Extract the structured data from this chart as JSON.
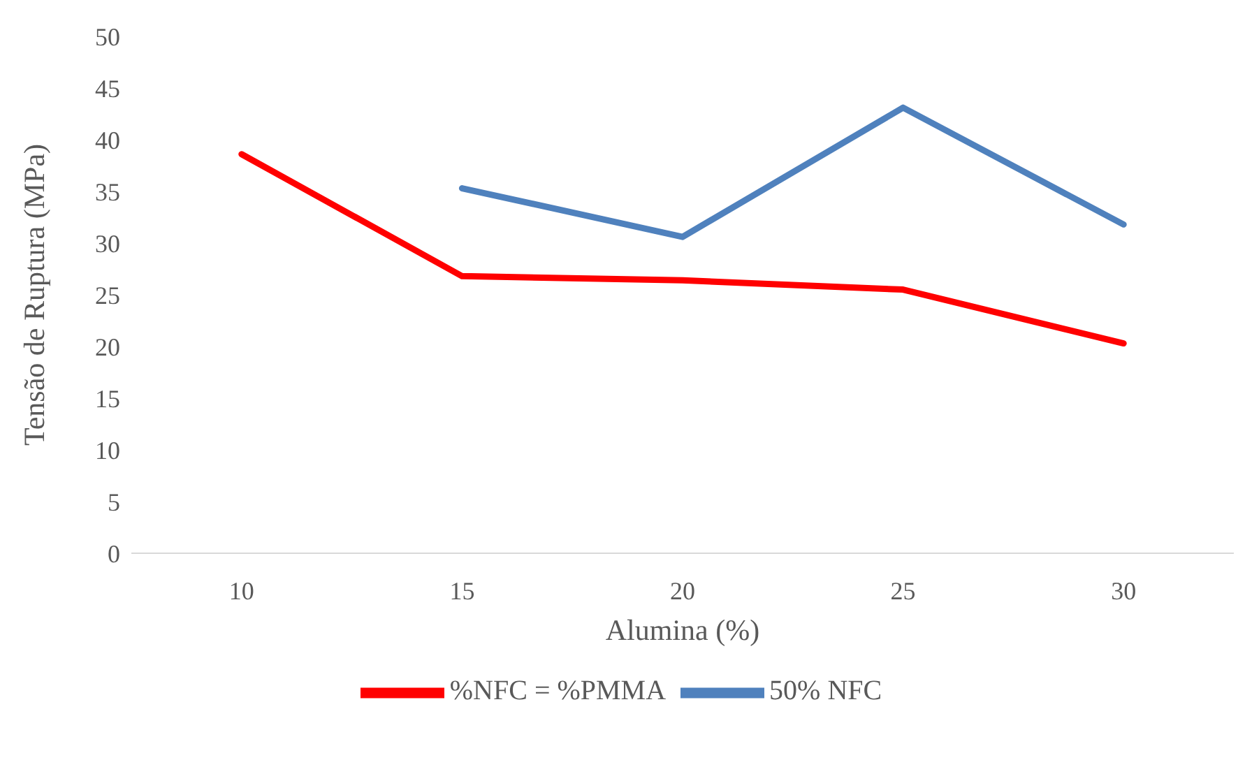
{
  "chart_data": {
    "type": "line",
    "xlabel": "Alumina (%)",
    "ylabel": "Tensão de Ruptura  (MPa)",
    "categories": [
      "10",
      "15",
      "20",
      "25",
      "30"
    ],
    "series": [
      {
        "name": "%NFC = %PMMA",
        "color": "#ff0000",
        "values": [
          38.6,
          26.8,
          26.4,
          25.5,
          20.3
        ]
      },
      {
        "name": "50% NFC",
        "color": "#4f81bd",
        "values": [
          null,
          35.3,
          30.6,
          43.1,
          31.8
        ]
      }
    ],
    "ylim": [
      0,
      50
    ],
    "yticks": [
      0,
      5,
      10,
      15,
      20,
      25,
      30,
      35,
      40,
      45,
      50
    ],
    "grid": false,
    "legend": "bottom",
    "marker": "none",
    "line_style": "solid"
  }
}
